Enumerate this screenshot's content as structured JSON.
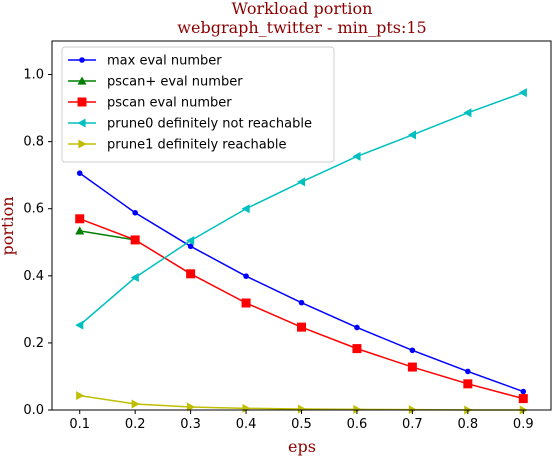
{
  "chart_data": {
    "type": "line",
    "title": "Workload portion",
    "subtitle": "webgraph_twitter - min_pts:15",
    "xlabel": "eps",
    "ylabel": "portion",
    "xlim": [
      0.05,
      0.95
    ],
    "ylim": [
      0.0,
      1.1
    ],
    "xticks": [
      "0.1",
      "0.2",
      "0.3",
      "0.4",
      "0.5",
      "0.6",
      "0.7",
      "0.8",
      "0.9"
    ],
    "yticks": [
      "0.0",
      "0.2",
      "0.4",
      "0.6",
      "0.8",
      "1.0"
    ],
    "grid": false,
    "legend_position": "top-left",
    "series": [
      {
        "name": "max eval number",
        "color": "#0000ff",
        "marker": "dot",
        "x": [
          0.1,
          0.2,
          0.3,
          0.4,
          0.5,
          0.6,
          0.7,
          0.8,
          0.9
        ],
        "y": [
          0.706,
          0.588,
          0.488,
          0.399,
          0.32,
          0.246,
          0.178,
          0.115,
          0.055
        ]
      },
      {
        "name": "pscan+ eval number",
        "color": "#008000",
        "marker": "triangle-up",
        "x": [
          0.1,
          0.2
        ],
        "y": [
          0.534,
          0.507
        ]
      },
      {
        "name": "pscan eval number",
        "color": "#ff0000",
        "marker": "square",
        "x": [
          0.1,
          0.2,
          0.3,
          0.4,
          0.5,
          0.6,
          0.7,
          0.8,
          0.9
        ],
        "y": [
          0.57,
          0.507,
          0.406,
          0.319,
          0.247,
          0.183,
          0.128,
          0.078,
          0.034
        ]
      },
      {
        "name": "prune0 definitely not reachable",
        "color": "#00bfbf",
        "marker": "triangle-left",
        "x": [
          0.1,
          0.2,
          0.3,
          0.4,
          0.5,
          0.6,
          0.7,
          0.8,
          0.9
        ],
        "y": [
          0.253,
          0.395,
          0.505,
          0.6,
          0.68,
          0.756,
          0.82,
          0.886,
          0.946
        ]
      },
      {
        "name": "prune1 definitely reachable",
        "color": "#bfbf00",
        "marker": "triangle-right",
        "x": [
          0.1,
          0.2,
          0.3,
          0.4,
          0.5,
          0.6,
          0.7,
          0.8,
          0.9
        ],
        "y": [
          0.043,
          0.018,
          0.009,
          0.005,
          0.003,
          0.002,
          0.001,
          0.0,
          0.0
        ]
      }
    ]
  }
}
